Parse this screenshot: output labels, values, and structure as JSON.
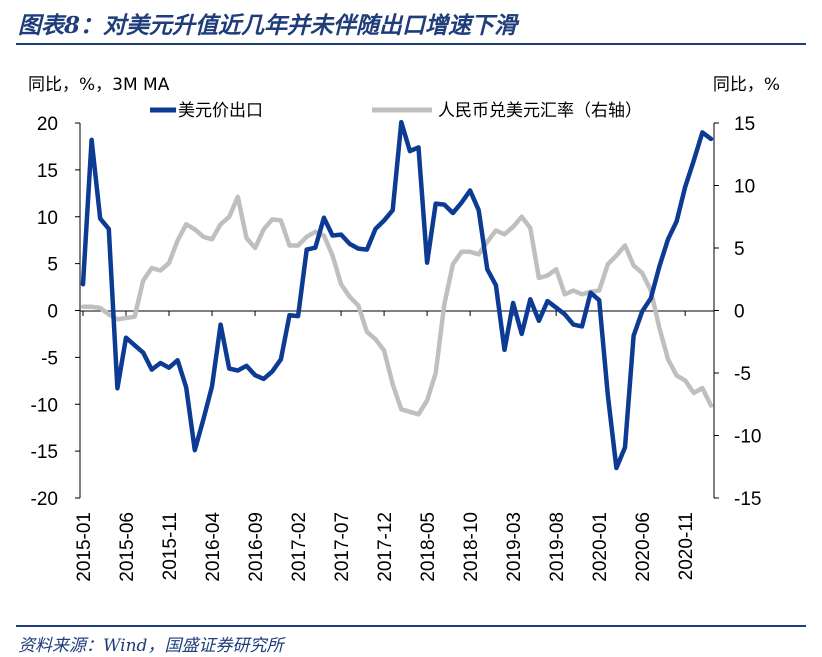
{
  "header": {
    "title": "图表8：对美元升值近几年并未伴随出口增速下滑"
  },
  "footer": {
    "source": "资料来源：Wind，国盛证券研究所"
  },
  "chart_data": {
    "type": "line",
    "title": "图表8：对美元升值近几年并未伴随出口增速下滑",
    "left_axis_unit": "同比，%，3M MA",
    "right_axis_unit": "同比，%",
    "ylim_left": [
      -20,
      20
    ],
    "ylim_right": [
      -15,
      15
    ],
    "yticks_left": [
      "20",
      "15",
      "10",
      "5",
      "0",
      "-5",
      "-10",
      "-15",
      "-20"
    ],
    "yticks_right": [
      "15",
      "10",
      "5",
      "0",
      "-5",
      "-10",
      "-15"
    ],
    "xticks": [
      "2015-01",
      "2015-06",
      "2015-11",
      "2016-04",
      "2016-09",
      "2017-02",
      "2017-07",
      "2017-12",
      "2018-05",
      "2018-10",
      "2019-03",
      "2019-08",
      "2020-01",
      "2020-06",
      "2020-11"
    ],
    "grid": false,
    "legend_position": "top",
    "colors": {
      "export": "#0d3b94",
      "fx": "#bfbfbf",
      "axis": "#000000"
    },
    "series": [
      {
        "name": "美元价出口",
        "axis": "left",
        "x": [
          "2015-01",
          "2015-02",
          "2015-03",
          "2015-04",
          "2015-05",
          "2015-06",
          "2015-07",
          "2015-08",
          "2015-09",
          "2015-10",
          "2015-11",
          "2015-12",
          "2016-01",
          "2016-02",
          "2016-03",
          "2016-04",
          "2016-05",
          "2016-06",
          "2016-07",
          "2016-08",
          "2016-09",
          "2016-10",
          "2016-11",
          "2016-12",
          "2017-01",
          "2017-02",
          "2017-03",
          "2017-04",
          "2017-05",
          "2017-06",
          "2017-07",
          "2017-08",
          "2017-09",
          "2017-10",
          "2017-11",
          "2017-12",
          "2018-01",
          "2018-02",
          "2018-03",
          "2018-04",
          "2018-05",
          "2018-06",
          "2018-07",
          "2018-08",
          "2018-09",
          "2018-10",
          "2018-11",
          "2018-12",
          "2019-01",
          "2019-02",
          "2019-03",
          "2019-04",
          "2019-05",
          "2019-06",
          "2019-07",
          "2019-08",
          "2019-09",
          "2019-10",
          "2019-11",
          "2019-12",
          "2020-01",
          "2020-02",
          "2020-03",
          "2020-04",
          "2020-05",
          "2020-06",
          "2020-07",
          "2020-08",
          "2020-09",
          "2020-10",
          "2020-11",
          "2020-12",
          "2021-01",
          "2021-02"
        ],
        "values": [
          2.8,
          18.2,
          9.8,
          8.7,
          -8.3,
          -2.9,
          -3.7,
          -4.5,
          -6.3,
          -5.6,
          -6.1,
          -5.3,
          -8.2,
          -14.9,
          -11.6,
          -8.1,
          -1.5,
          -6.2,
          -6.4,
          -5.9,
          -6.9,
          -7.3,
          -6.5,
          -5.2,
          -0.5,
          -0.6,
          6.5,
          6.7,
          9.9,
          8.0,
          8.1,
          7.1,
          6.6,
          6.5,
          8.7,
          9.6,
          10.7,
          20.1,
          17.0,
          17.4,
          5.1,
          11.4,
          11.3,
          10.4,
          11.5,
          12.8,
          10.7,
          4.4,
          2.7,
          -4.2,
          0.8,
          -2.5,
          1.2,
          -1.1,
          1.0,
          0.3,
          -0.4,
          -1.5,
          -1.7,
          1.9,
          1.1,
          -9.0,
          -16.8,
          -14.6,
          -2.7,
          -0.1,
          1.3,
          4.7,
          7.6,
          9.5,
          13.2,
          16.0,
          19.0,
          18.3
        ]
      },
      {
        "name": "人民币兑美元汇率（右轴）",
        "axis": "right",
        "x": [
          "2015-01",
          "2015-02",
          "2015-03",
          "2015-04",
          "2015-05",
          "2015-06",
          "2015-07",
          "2015-08",
          "2015-09",
          "2015-10",
          "2015-11",
          "2015-12",
          "2016-01",
          "2016-02",
          "2016-03",
          "2016-04",
          "2016-05",
          "2016-06",
          "2016-07",
          "2016-08",
          "2016-09",
          "2016-10",
          "2016-11",
          "2016-12",
          "2017-01",
          "2017-02",
          "2017-03",
          "2017-04",
          "2017-05",
          "2017-06",
          "2017-07",
          "2017-08",
          "2017-09",
          "2017-10",
          "2017-11",
          "2017-12",
          "2018-01",
          "2018-02",
          "2018-03",
          "2018-04",
          "2018-05",
          "2018-06",
          "2018-07",
          "2018-08",
          "2018-09",
          "2018-10",
          "2018-11",
          "2018-12",
          "2019-01",
          "2019-02",
          "2019-03",
          "2019-04",
          "2019-05",
          "2019-06",
          "2019-07",
          "2019-08",
          "2019-09",
          "2019-10",
          "2019-11",
          "2019-12",
          "2020-01",
          "2020-02",
          "2020-03",
          "2020-04",
          "2020-05",
          "2020-06",
          "2020-07",
          "2020-08",
          "2020-09",
          "2020-10",
          "2020-11",
          "2020-12",
          "2021-01",
          "2021-02"
        ],
        "values": [
          0.3,
          0.3,
          0.2,
          -0.3,
          -0.7,
          -0.6,
          -0.5,
          2.4,
          3.4,
          3.2,
          3.8,
          5.6,
          6.9,
          6.5,
          5.9,
          5.7,
          6.9,
          7.5,
          9.1,
          5.8,
          5.0,
          6.5,
          7.3,
          7.2,
          5.2,
          5.2,
          5.9,
          6.3,
          6.0,
          4.4,
          2.1,
          1.1,
          0.4,
          -1.7,
          -2.3,
          -3.2,
          -5.9,
          -7.9,
          -8.1,
          -8.3,
          -7.2,
          -5.0,
          0.5,
          3.7,
          4.7,
          4.7,
          4.5,
          5.5,
          6.4,
          6.1,
          6.7,
          7.5,
          6.6,
          2.6,
          2.8,
          3.3,
          1.3,
          1.6,
          1.3,
          1.5,
          1.6,
          3.7,
          4.4,
          5.2,
          3.6,
          3.0,
          1.6,
          -1.4,
          -3.9,
          -5.2,
          -5.6,
          -6.6,
          -6.2,
          -7.6
        ]
      }
    ]
  }
}
